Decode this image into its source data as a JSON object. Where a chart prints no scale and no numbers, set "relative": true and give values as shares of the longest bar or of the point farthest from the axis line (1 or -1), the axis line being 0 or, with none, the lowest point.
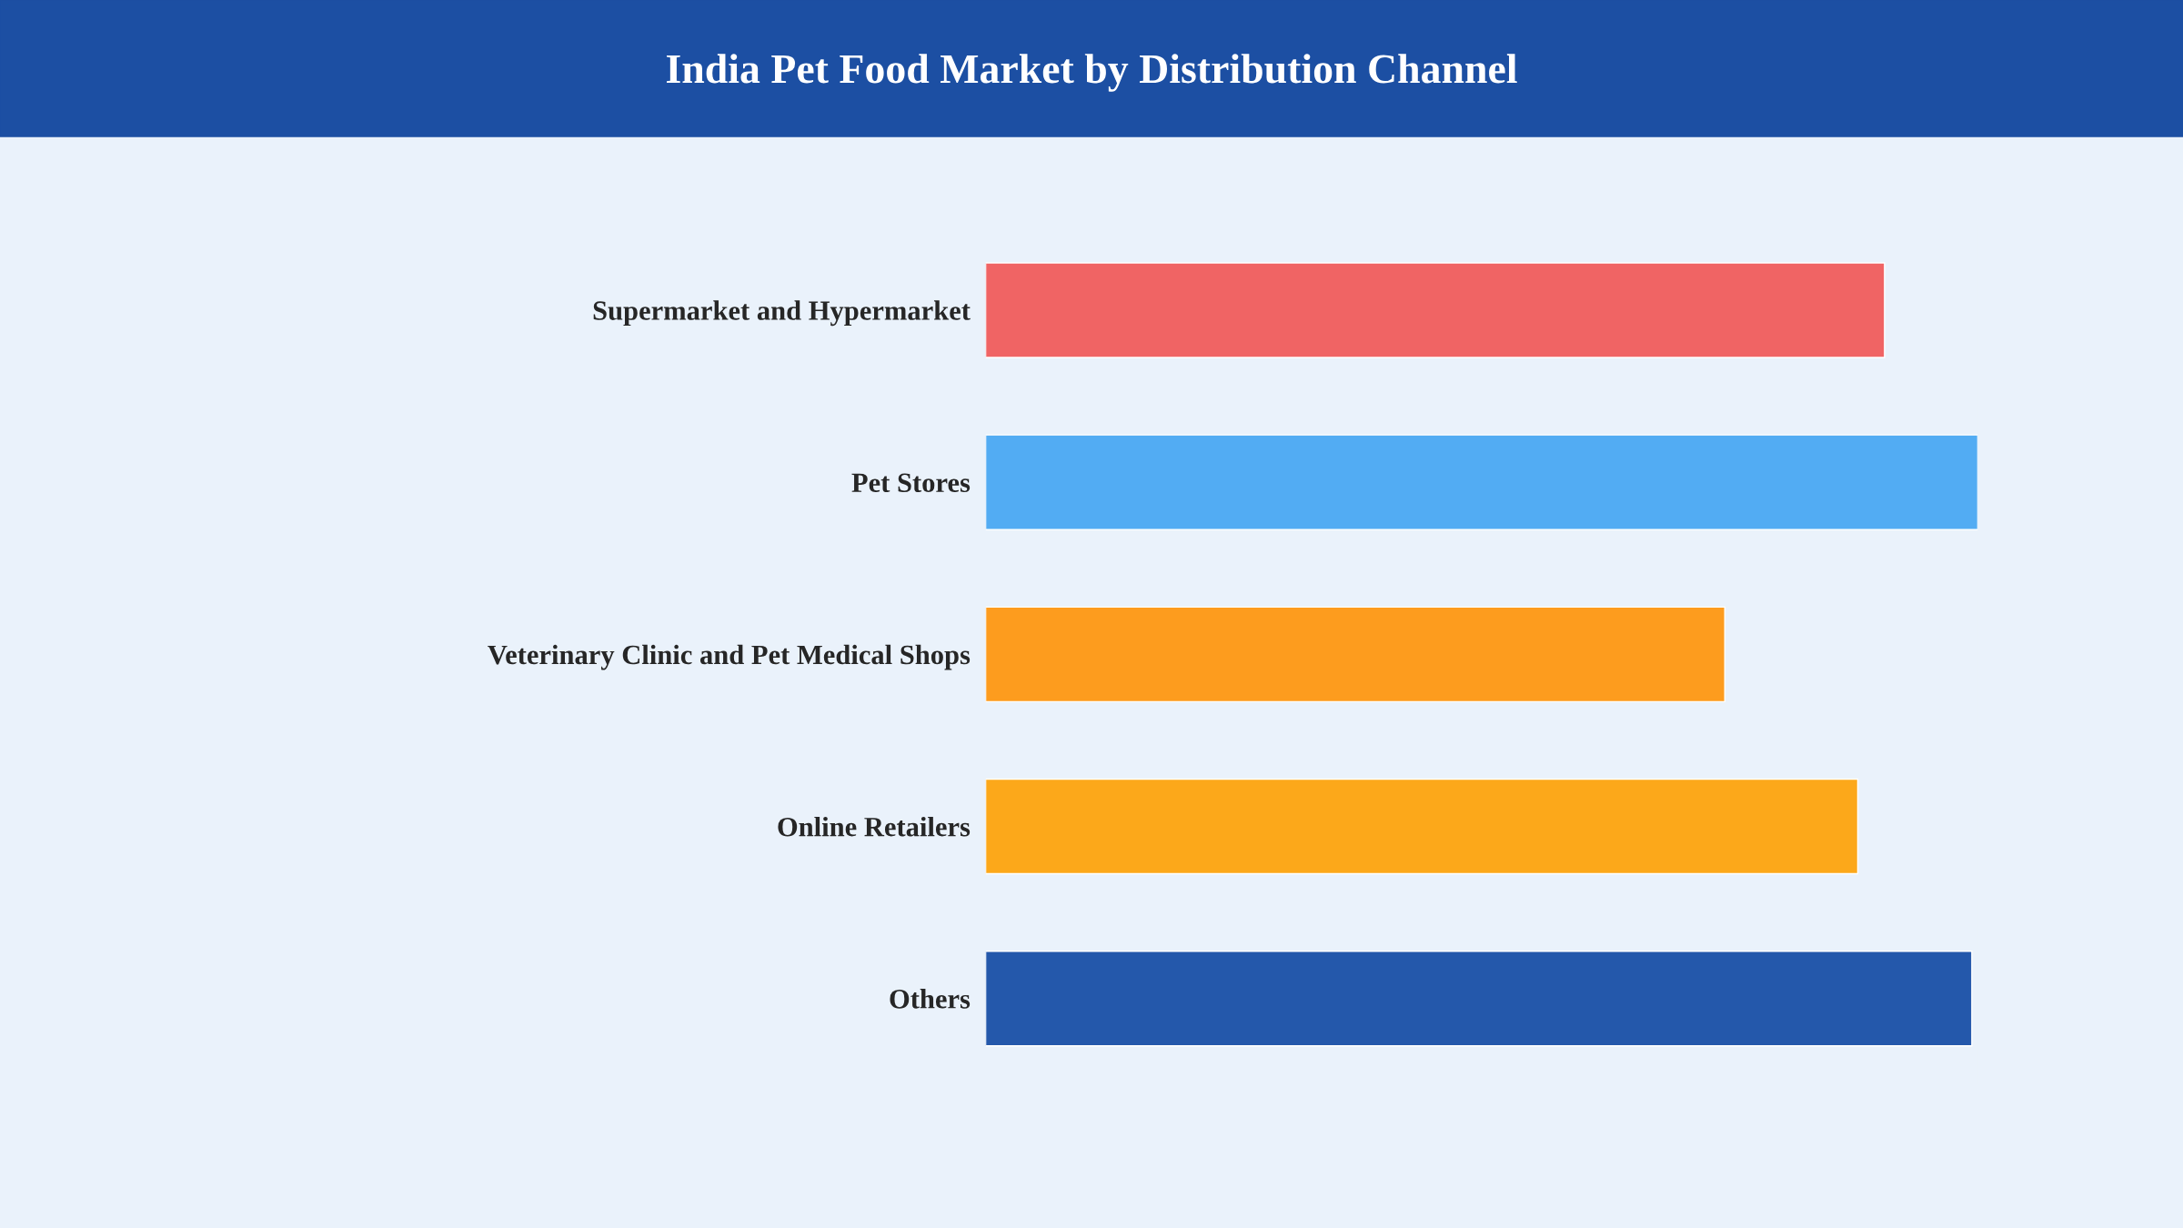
{
  "chart_data": {
    "type": "bar",
    "orientation": "horizontal",
    "relative": true,
    "title": "India Pet Food Market by Distribution Channel",
    "categories": [
      "Supermarket and Hypermarket",
      "Pet Stores",
      "Veterinary Clinic and Pet Medical Shops",
      "Online Retailers",
      "Others"
    ],
    "values": [
      0.906,
      1,
      0.745,
      0.879,
      0.994
    ],
    "colors": [
      "#f06464",
      "#52acf3",
      "#fd9c1e",
      "#fca81a",
      "#2458ab"
    ],
    "grid": false,
    "legend": false
  }
}
